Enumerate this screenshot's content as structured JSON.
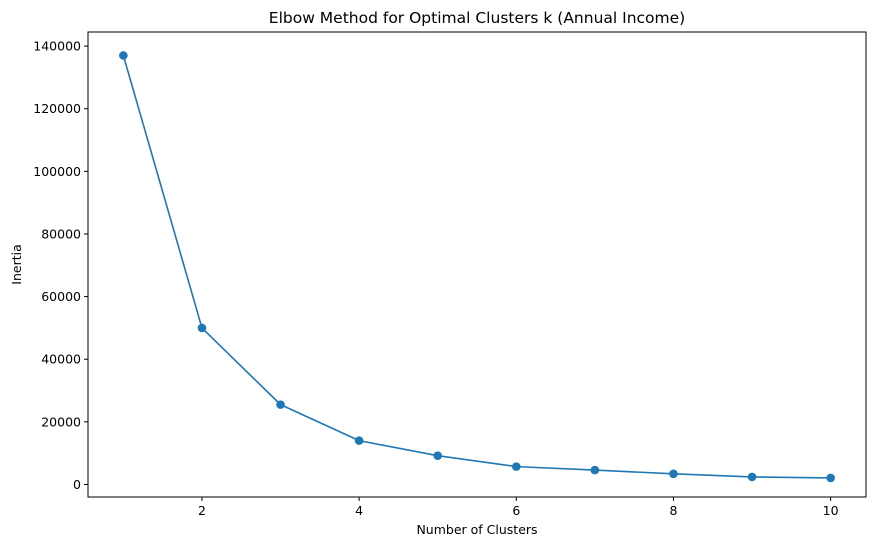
{
  "chart_data": {
    "type": "line",
    "title": "Elbow Method for Optimal Clusters k (Annual Income)",
    "xlabel": "Number of Clusters",
    "ylabel": "Inertia",
    "x": [
      1,
      2,
      3,
      4,
      5,
      6,
      7,
      8,
      9,
      10
    ],
    "series": [
      {
        "name": "Inertia",
        "values": [
          137000,
          50000,
          25500,
          14000,
          9200,
          5700,
          4600,
          3400,
          2400,
          2100
        ],
        "color": "#1f77b4",
        "marker": "circle"
      }
    ],
    "xlim": [
      0.55,
      10.45
    ],
    "ylim": [
      -4000,
      144500
    ],
    "xticks": [
      2,
      4,
      6,
      8,
      10
    ],
    "yticks": [
      0,
      20000,
      40000,
      60000,
      80000,
      100000,
      120000,
      140000
    ],
    "grid": false,
    "legend": false
  }
}
